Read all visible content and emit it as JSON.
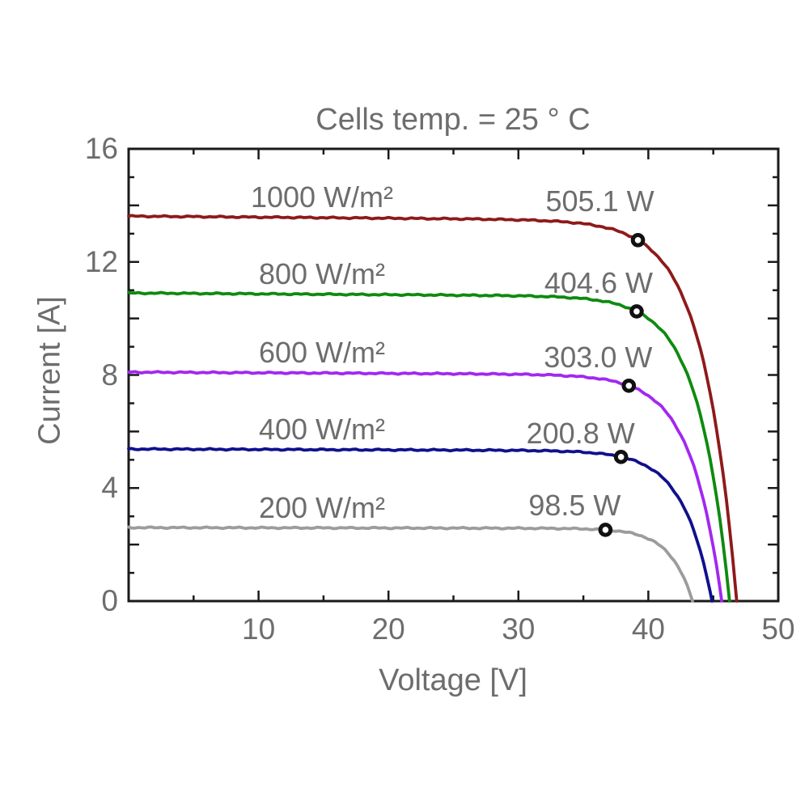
{
  "chart_data": {
    "type": "line",
    "title": "Cells temp. = 25 ° C",
    "xlabel": "Voltage [V]",
    "ylabel": "Current [A]",
    "grid": false,
    "legend_position": "inline-curve-labels",
    "x_axis": {
      "range": [
        0,
        50
      ],
      "tick_labels": [
        "10",
        "20",
        "30",
        "40",
        "50"
      ],
      "labeled_ticks": [
        10,
        20,
        30,
        40,
        50
      ],
      "minor_ticks": [
        5,
        15,
        25,
        35,
        45
      ]
    },
    "y_axis": {
      "range": [
        0,
        16
      ],
      "tick_labels": [
        "0",
        "4",
        "8",
        "12",
        "16"
      ],
      "labeled_ticks": [
        0,
        4,
        8,
        12,
        16
      ],
      "major_tick_step": 2,
      "minor_tick_step": 1
    },
    "series": [
      {
        "irradiance_label": "1000 W/m²",
        "power_label": "505.1 W",
        "irradiance_w_m2": 1000,
        "color": "#8e1a1a",
        "isc_a": 13.62,
        "voc_v": 46.8,
        "vmp_v": 39.2,
        "imp_a": 12.77,
        "mpp_w": 505.1
      },
      {
        "irradiance_label": "800 W/m²",
        "power_label": "404.6 W",
        "irradiance_w_m2": 800,
        "color": "#0f8a10",
        "isc_a": 10.9,
        "voc_v": 46.25,
        "vmp_v": 39.1,
        "imp_a": 10.25,
        "mpp_w": 404.6
      },
      {
        "irradiance_label": "600 W/m²",
        "power_label": "303.0 W",
        "irradiance_w_m2": 600,
        "color": "#a228f0",
        "isc_a": 8.1,
        "voc_v": 45.65,
        "vmp_v": 38.5,
        "imp_a": 7.62,
        "mpp_w": 303.0
      },
      {
        "irradiance_label": "400 W/m²",
        "power_label": "200.8 W",
        "irradiance_w_m2": 400,
        "color": "#10108e",
        "isc_a": 5.38,
        "voc_v": 44.9,
        "vmp_v": 37.9,
        "imp_a": 5.1,
        "mpp_w": 200.8
      },
      {
        "irradiance_label": "200 W/m²",
        "power_label": "98.5 W",
        "irradiance_w_m2": 200,
        "color": "#9c9c9c",
        "isc_a": 2.6,
        "voc_v": 43.4,
        "vmp_v": 36.7,
        "imp_a": 2.52,
        "mpp_w": 98.5
      }
    ],
    "marker": {
      "style": "open-circle",
      "color": "#111111",
      "fill": "#ffffff"
    },
    "colors": {
      "text": "#6d6d6d",
      "axis": "#1a1a1a",
      "background": "#ffffff"
    }
  }
}
